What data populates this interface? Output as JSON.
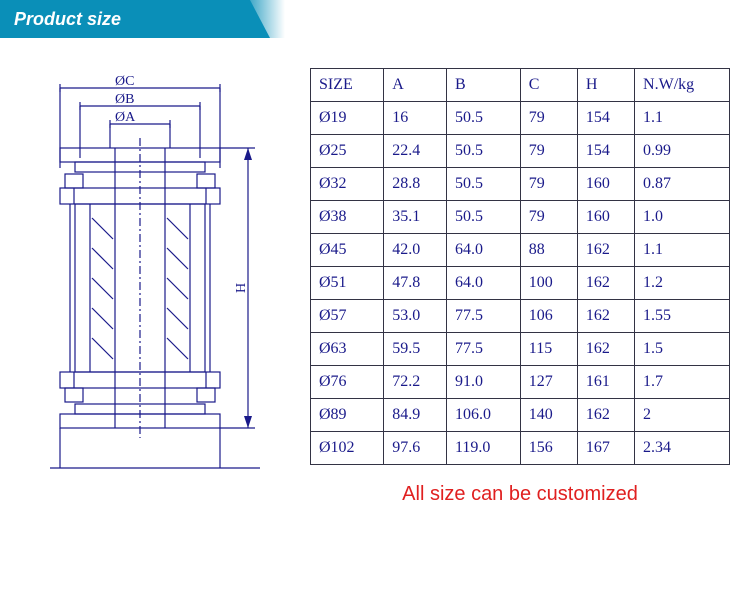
{
  "header": {
    "title": "Product size"
  },
  "diagram": {
    "labels": {
      "c": "ØC",
      "b": "ØB",
      "a": "ØA",
      "h": "H"
    },
    "stroke_color": "#1a1a8a",
    "stroke_width": 1.2
  },
  "table": {
    "columns": [
      "SIZE",
      "A",
      "B",
      "C",
      "H",
      "N.W/kg"
    ],
    "rows": [
      [
        "Ø19",
        "16",
        "50.5",
        "79",
        "154",
        "1.1"
      ],
      [
        "Ø25",
        "22.4",
        "50.5",
        "79",
        "154",
        "0.99"
      ],
      [
        "Ø32",
        "28.8",
        "50.5",
        "79",
        "160",
        "0.87"
      ],
      [
        "Ø38",
        "35.1",
        "50.5",
        "79",
        "160",
        "1.0"
      ],
      [
        "Ø45",
        "42.0",
        "64.0",
        "88",
        "162",
        "1.1"
      ],
      [
        "Ø51",
        "47.8",
        "64.0",
        "100",
        "162",
        "1.2"
      ],
      [
        "Ø57",
        "53.0",
        "77.5",
        "106",
        "162",
        "1.55"
      ],
      [
        "Ø63",
        "59.5",
        "77.5",
        "115",
        "162",
        "1.5"
      ],
      [
        "Ø76",
        "72.2",
        "91.0",
        "127",
        "161",
        "1.7"
      ],
      [
        "Ø89",
        "84.9",
        "106.0",
        "140",
        "162",
        "2"
      ],
      [
        "Ø102",
        "97.6",
        "119.0",
        "156",
        "167",
        "2.34"
      ]
    ],
    "border_color": "#333344",
    "text_color": "#1a1a8a"
  },
  "footnote": {
    "text": "All size can be customized",
    "color": "#e02020"
  }
}
